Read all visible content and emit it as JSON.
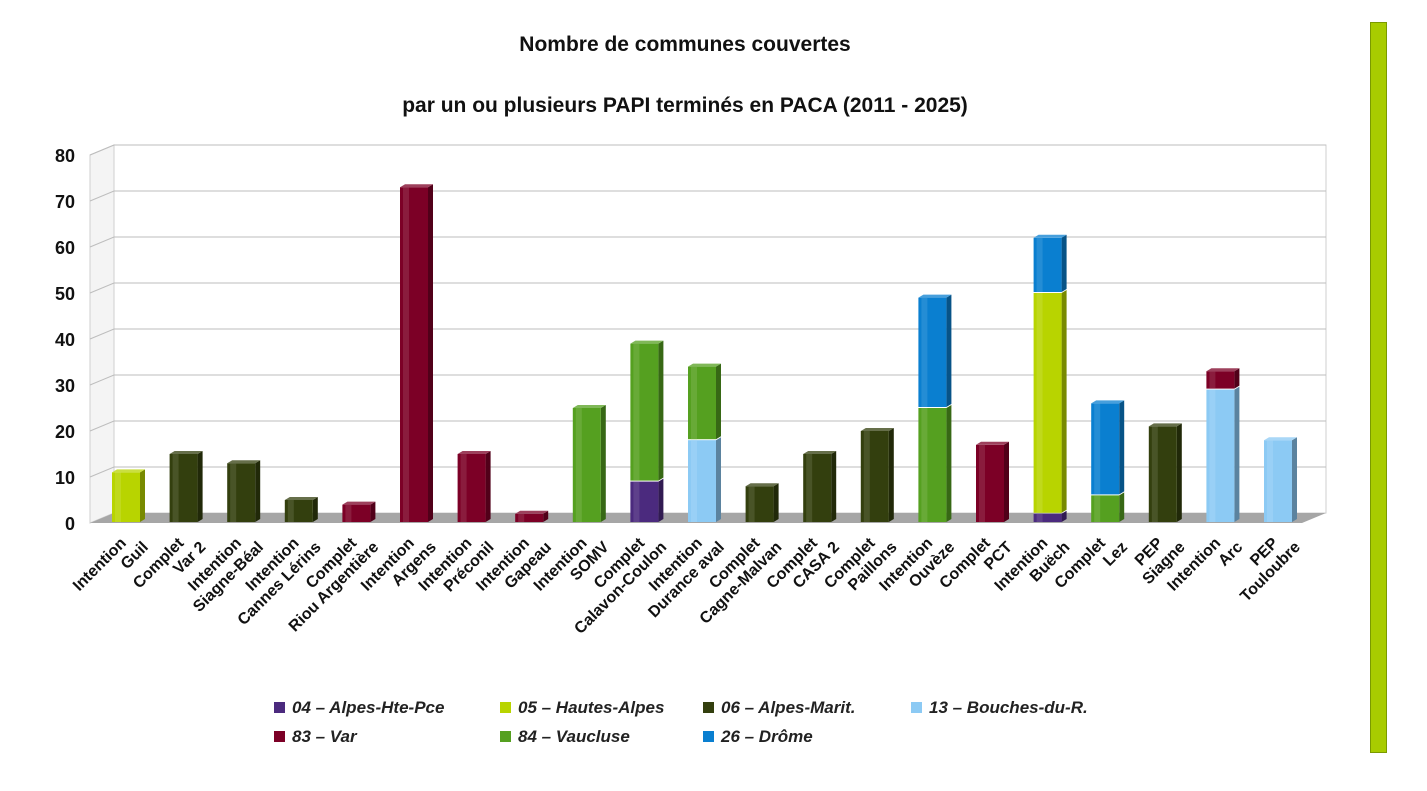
{
  "chart_data": {
    "type": "bar",
    "stacked": true,
    "title": "Nombre de communes couvertes",
    "subtitle": "par un ou plusieurs PAPI terminés en PACA (2011 - 2025)",
    "ylim": [
      0,
      80
    ],
    "yticks": [
      0,
      10,
      20,
      30,
      40,
      50,
      60,
      70,
      80
    ],
    "grid": true,
    "legend_position": "bottom",
    "categories": [
      [
        "Intention",
        "Guil"
      ],
      [
        "Complet",
        "Var 2"
      ],
      [
        "Intention",
        "Siagne-Béal"
      ],
      [
        "Intention",
        "Cannes Lérins"
      ],
      [
        "Complet",
        "Riou Argentière"
      ],
      [
        "Intention",
        "Argens"
      ],
      [
        "Intention",
        "Préconil"
      ],
      [
        "Intention",
        "Gapeau"
      ],
      [
        "Intention",
        "SOMV"
      ],
      [
        "Complet",
        "Calavon-Coulon"
      ],
      [
        "Intention",
        "Durance aval"
      ],
      [
        "Complet",
        "Cagne-Malvan"
      ],
      [
        "Complet",
        "CASA 2"
      ],
      [
        "Complet",
        "Paillons"
      ],
      [
        "Intention",
        "Ouvèze"
      ],
      [
        "Complet",
        "PCT"
      ],
      [
        "Intention",
        "Buëch"
      ],
      [
        "Complet",
        "Lez"
      ],
      [
        "PEP",
        "Siagne"
      ],
      [
        "Intention",
        "Arc"
      ],
      [
        "PEP",
        "Touloubre"
      ]
    ],
    "series": [
      {
        "name": "04 – Alpes-Hte-Pce",
        "color": "#4b2a7e",
        "values": [
          0,
          0,
          0,
          0,
          0,
          0,
          0,
          0,
          0,
          9,
          0,
          0,
          0,
          0,
          0,
          0,
          2,
          0,
          0,
          0,
          0
        ]
      },
      {
        "name": "05 – Hautes-Alpes",
        "color": "#b8d400",
        "values": [
          11,
          0,
          0,
          0,
          0,
          0,
          0,
          0,
          0,
          0,
          0,
          0,
          0,
          0,
          0,
          0,
          48,
          0,
          0,
          0,
          0
        ]
      },
      {
        "name": "06 – Alpes-Marit.",
        "color": "#333f0e",
        "values": [
          0,
          15,
          13,
          5,
          0,
          0,
          0,
          0,
          0,
          0,
          0,
          8,
          15,
          20,
          0,
          0,
          0,
          0,
          21,
          0,
          0
        ]
      },
      {
        "name": "13 – Bouches-du-R.",
        "color": "#8ccaf4",
        "values": [
          0,
          0,
          0,
          0,
          0,
          0,
          0,
          0,
          0,
          0,
          18,
          0,
          0,
          0,
          0,
          0,
          0,
          0,
          0,
          29,
          18
        ]
      },
      {
        "name": "83 – Var",
        "color": "#7c0026",
        "values": [
          0,
          0,
          0,
          0,
          4,
          73,
          15,
          2,
          0,
          0,
          0,
          0,
          0,
          0,
          0,
          17,
          0,
          0,
          0,
          4,
          0
        ]
      },
      {
        "name": "84 – Vaucluse",
        "color": "#55a020",
        "values": [
          0,
          0,
          0,
          0,
          0,
          0,
          0,
          0,
          25,
          30,
          16,
          0,
          0,
          0,
          25,
          0,
          0,
          6,
          0,
          0,
          0
        ]
      },
      {
        "name": "26 – Drôme",
        "color": "#0a7fd0",
        "values": [
          0,
          0,
          0,
          0,
          0,
          0,
          0,
          0,
          0,
          0,
          0,
          0,
          0,
          0,
          24,
          0,
          12,
          20,
          0,
          0,
          0
        ]
      }
    ]
  },
  "accent_color": "#a8cc00"
}
